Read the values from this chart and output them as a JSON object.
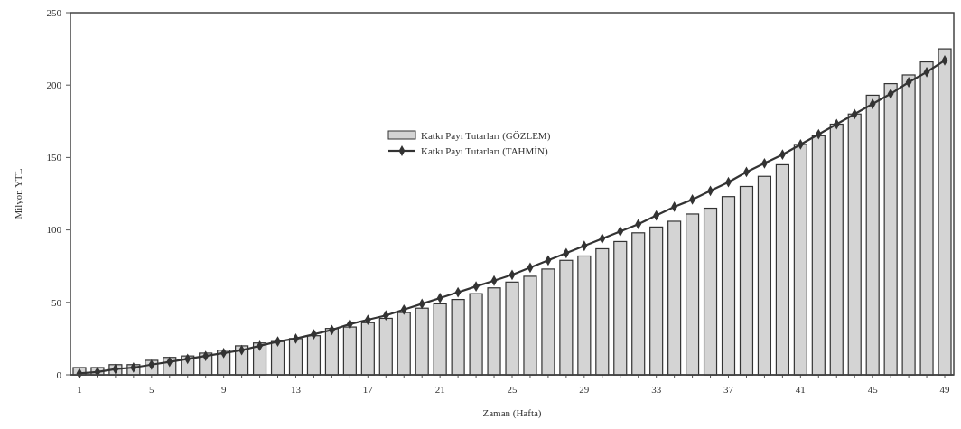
{
  "chart_data": {
    "type": "bar",
    "xlabel": "Zaman (Hafta)",
    "ylabel": "Milyon YTL",
    "categories": [
      "1",
      null,
      null,
      null,
      "5",
      null,
      null,
      null,
      "9",
      null,
      null,
      null,
      "13",
      null,
      null,
      null,
      "17",
      null,
      null,
      null,
      "21",
      null,
      null,
      null,
      "25",
      null,
      null,
      null,
      "29",
      null,
      null,
      null,
      "33",
      null,
      null,
      null,
      "37",
      null,
      null,
      null,
      "41",
      null,
      null,
      null,
      "45",
      null,
      null,
      null,
      "49"
    ],
    "series": [
      {
        "name": "Katkı Payı Tutarları (GÖZLEM)",
        "color": "#d4d4d4",
        "values": [
          5,
          5,
          7,
          7,
          10,
          12,
          13,
          15,
          17,
          20,
          22,
          23,
          25,
          27,
          32,
          33,
          36,
          39,
          43,
          46,
          49,
          52,
          56,
          60,
          64,
          68,
          73,
          79,
          82,
          87,
          92,
          98,
          102,
          106,
          111,
          115,
          123,
          130,
          137,
          145,
          159,
          165,
          173,
          180,
          193,
          201,
          207,
          216,
          225
        ]
      },
      {
        "name": "Katkı Payı Tutarları (TAHMİN)",
        "type": "line",
        "color": "#333333",
        "values": [
          1,
          2,
          4,
          5,
          7,
          9,
          11,
          13,
          15,
          17,
          20,
          23,
          25,
          28,
          31,
          35,
          38,
          41,
          45,
          49,
          53,
          57,
          61,
          65,
          69,
          74,
          79,
          84,
          89,
          94,
          99,
          104,
          110,
          116,
          121,
          127,
          133,
          140,
          146,
          152,
          159,
          166,
          173,
          180,
          187,
          194,
          202,
          209,
          217
        ]
      }
    ],
    "ylim": [
      0,
      250
    ],
    "yticks": [
      0,
      50,
      100,
      150,
      200,
      250
    ],
    "legend": "top",
    "marker": "diamond"
  }
}
